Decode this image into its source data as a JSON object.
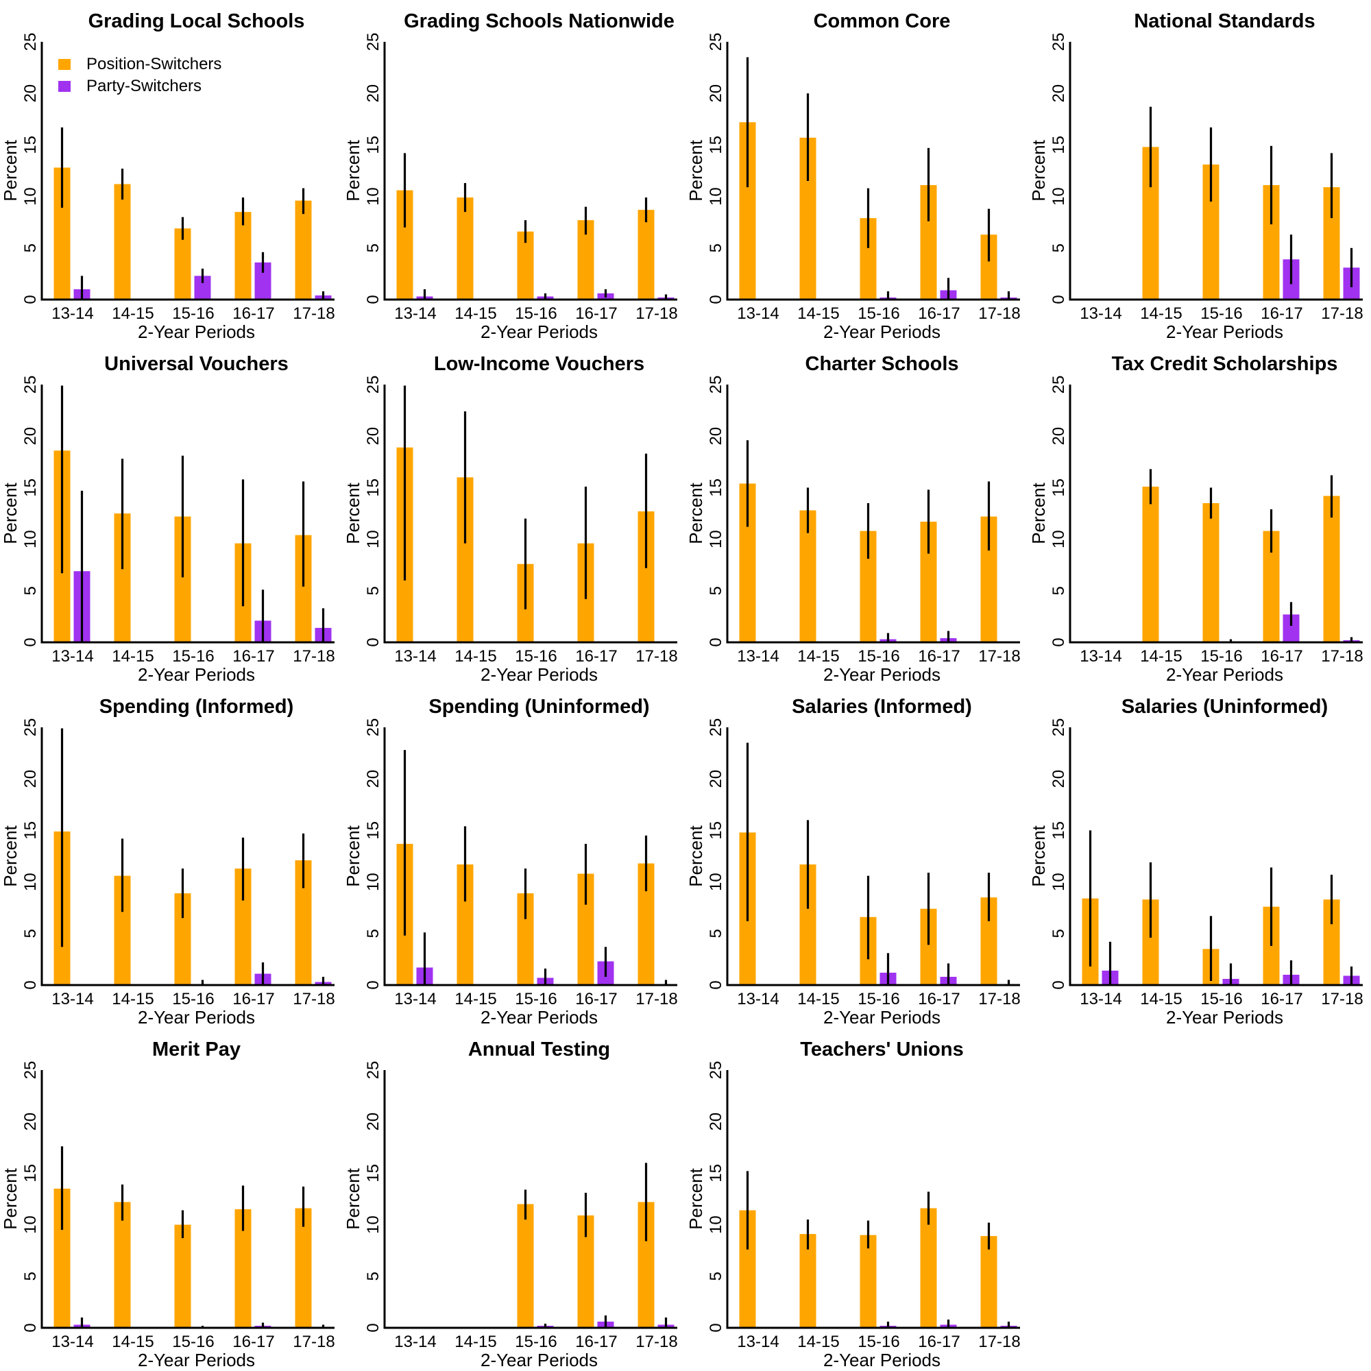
{
  "chart_data": {
    "type": "bar",
    "layout": "small-multiples 4x4 grid",
    "xlabel": "2-Year Periods",
    "ylabel": "Percent",
    "ylim": [
      0,
      25
    ],
    "yticks": [
      0,
      5,
      10,
      15,
      20,
      25
    ],
    "categories": [
      "13-14",
      "14-15",
      "15-16",
      "16-17",
      "17-18"
    ],
    "grid": false,
    "legend": {
      "placement": "top-left (first panel)",
      "entries": [
        {
          "name": "Position-Switchers",
          "color": "#FFA500"
        },
        {
          "name": "Party-Switchers",
          "color": "#A032F0"
        }
      ]
    },
    "error_bar_color": "#000000",
    "panels": [
      {
        "title": "Grading Local Schools",
        "series": [
          {
            "name": "Position-Switchers",
            "values": [
              12.8,
              11.2,
              6.9,
              8.5,
              9.6
            ],
            "ci_low": [
              8.9,
              9.7,
              5.8,
              7.2,
              8.3
            ],
            "ci_high": [
              16.7,
              12.7,
              8.0,
              9.9,
              10.8
            ]
          },
          {
            "name": "Party-Switchers",
            "values": [
              1.0,
              null,
              2.3,
              3.6,
              0.4
            ],
            "ci_low": [
              0.0,
              null,
              1.6,
              2.6,
              0.0
            ],
            "ci_high": [
              2.3,
              null,
              3.0,
              4.6,
              0.8
            ]
          }
        ]
      },
      {
        "title": "Grading Schools Nationwide",
        "series": [
          {
            "name": "Position-Switchers",
            "values": [
              10.6,
              9.9,
              6.6,
              7.7,
              8.7
            ],
            "ci_low": [
              7.0,
              8.5,
              5.5,
              6.3,
              7.5
            ],
            "ci_high": [
              14.2,
              11.3,
              7.7,
              9.0,
              9.9
            ]
          },
          {
            "name": "Party-Switchers",
            "values": [
              0.3,
              null,
              0.3,
              0.6,
              0.2
            ],
            "ci_low": [
              0.0,
              null,
              0.0,
              0.2,
              0.0
            ],
            "ci_high": [
              1.0,
              null,
              0.6,
              1.0,
              0.5
            ]
          }
        ]
      },
      {
        "title": "Common Core",
        "series": [
          {
            "name": "Position-Switchers",
            "values": [
              17.2,
              15.7,
              7.9,
              11.1,
              6.3
            ],
            "ci_low": [
              10.9,
              11.5,
              5.0,
              7.6,
              3.7
            ],
            "ci_high": [
              23.5,
              20.0,
              10.8,
              14.7,
              8.8
            ]
          },
          {
            "name": "Party-Switchers",
            "values": [
              null,
              null,
              0.2,
              0.9,
              0.2
            ],
            "ci_low": [
              null,
              null,
              0.0,
              0.0,
              0.0
            ],
            "ci_high": [
              null,
              null,
              0.8,
              2.1,
              0.8
            ]
          }
        ]
      },
      {
        "title": "National Standards",
        "series": [
          {
            "name": "Position-Switchers",
            "values": [
              null,
              14.8,
              13.1,
              11.1,
              10.9
            ],
            "ci_low": [
              null,
              10.9,
              9.5,
              7.3,
              7.9
            ],
            "ci_high": [
              null,
              18.7,
              16.7,
              14.9,
              14.2
            ]
          },
          {
            "name": "Party-Switchers",
            "values": [
              null,
              null,
              null,
              3.9,
              3.1
            ],
            "ci_low": [
              null,
              null,
              null,
              1.5,
              1.2
            ],
            "ci_high": [
              null,
              null,
              null,
              6.3,
              5.0
            ]
          }
        ]
      },
      {
        "title": "Universal Vouchers",
        "series": [
          {
            "name": "Position-Switchers",
            "values": [
              18.6,
              12.5,
              12.2,
              9.6,
              10.4
            ],
            "ci_low": [
              6.7,
              7.1,
              6.3,
              3.5,
              5.4
            ],
            "ci_high": [
              24.9,
              17.8,
              18.1,
              15.8,
              15.6
            ]
          },
          {
            "name": "Party-Switchers",
            "values": [
              6.9,
              null,
              null,
              2.1,
              1.4
            ],
            "ci_low": [
              0.0,
              null,
              null,
              0.0,
              0.0
            ],
            "ci_high": [
              14.7,
              null,
              null,
              5.1,
              3.3
            ]
          }
        ]
      },
      {
        "title": "Low-Income Vouchers",
        "series": [
          {
            "name": "Position-Switchers",
            "values": [
              18.9,
              16.0,
              7.6,
              9.6,
              12.7
            ],
            "ci_low": [
              6.0,
              9.6,
              3.2,
              4.2,
              7.2
            ],
            "ci_high": [
              24.9,
              22.4,
              12.0,
              15.1,
              18.3
            ]
          },
          {
            "name": "Party-Switchers",
            "values": [
              null,
              null,
              null,
              null,
              null
            ],
            "ci_low": [
              null,
              null,
              null,
              null,
              null
            ],
            "ci_high": [
              null,
              null,
              null,
              null,
              null
            ]
          }
        ]
      },
      {
        "title": "Charter Schools",
        "series": [
          {
            "name": "Position-Switchers",
            "values": [
              15.4,
              12.8,
              10.8,
              11.7,
              12.2
            ],
            "ci_low": [
              11.2,
              10.6,
              8.1,
              8.6,
              8.9
            ],
            "ci_high": [
              19.6,
              15.0,
              13.5,
              14.8,
              15.6
            ]
          },
          {
            "name": "Party-Switchers",
            "values": [
              null,
              null,
              0.3,
              0.4,
              null
            ],
            "ci_low": [
              null,
              null,
              0.0,
              0.0,
              null
            ],
            "ci_high": [
              null,
              null,
              0.9,
              1.1,
              null
            ]
          }
        ]
      },
      {
        "title": "Tax Credit Scholarships",
        "series": [
          {
            "name": "Position-Switchers",
            "values": [
              null,
              15.1,
              13.5,
              10.8,
              14.2
            ],
            "ci_low": [
              null,
              13.4,
              12.0,
              8.7,
              12.1
            ],
            "ci_high": [
              null,
              16.8,
              15.0,
              12.9,
              16.2
            ]
          },
          {
            "name": "Party-Switchers",
            "values": [
              null,
              null,
              0.1,
              2.7,
              0.2
            ],
            "ci_low": [
              null,
              null,
              0.0,
              1.6,
              0.0
            ],
            "ci_high": [
              null,
              null,
              0.3,
              3.9,
              0.5
            ]
          }
        ]
      },
      {
        "title": "Spending (Informed)",
        "series": [
          {
            "name": "Position-Switchers",
            "values": [
              14.9,
              10.6,
              8.9,
              11.3,
              12.1
            ],
            "ci_low": [
              3.7,
              7.1,
              6.5,
              8.2,
              9.4
            ],
            "ci_high": [
              24.9,
              14.2,
              11.3,
              14.3,
              14.7
            ]
          },
          {
            "name": "Party-Switchers",
            "values": [
              null,
              null,
              0.1,
              1.1,
              0.3
            ],
            "ci_low": [
              null,
              null,
              0.0,
              0.0,
              0.0
            ],
            "ci_high": [
              null,
              null,
              0.5,
              2.2,
              0.8
            ]
          }
        ]
      },
      {
        "title": "Spending (Uninformed)",
        "series": [
          {
            "name": "Position-Switchers",
            "values": [
              13.7,
              11.7,
              8.9,
              10.8,
              11.8
            ],
            "ci_low": [
              4.8,
              8.1,
              6.4,
              7.8,
              9.1
            ],
            "ci_high": [
              22.8,
              15.4,
              11.3,
              13.7,
              14.5
            ]
          },
          {
            "name": "Party-Switchers",
            "values": [
              1.7,
              null,
              0.7,
              2.3,
              0.1
            ],
            "ci_low": [
              0.0,
              null,
              0.0,
              0.8,
              0.0
            ],
            "ci_high": [
              5.1,
              null,
              1.6,
              3.7,
              0.5
            ]
          }
        ]
      },
      {
        "title": "Salaries (Informed)",
        "series": [
          {
            "name": "Position-Switchers",
            "values": [
              14.8,
              11.7,
              6.6,
              7.4,
              8.5
            ],
            "ci_low": [
              6.2,
              7.4,
              2.5,
              3.9,
              6.2
            ],
            "ci_high": [
              23.5,
              16.0,
              10.6,
              10.9,
              10.9
            ]
          },
          {
            "name": "Party-Switchers",
            "values": [
              null,
              null,
              1.2,
              0.8,
              0.1
            ],
            "ci_low": [
              null,
              null,
              0.0,
              0.0,
              0.0
            ],
            "ci_high": [
              null,
              null,
              3.1,
              2.1,
              0.5
            ]
          }
        ]
      },
      {
        "title": "Salaries (Uninformed)",
        "series": [
          {
            "name": "Position-Switchers",
            "values": [
              8.4,
              8.3,
              3.5,
              7.6,
              8.3
            ],
            "ci_low": [
              1.8,
              4.6,
              0.4,
              3.8,
              5.9
            ],
            "ci_high": [
              15.0,
              11.9,
              6.7,
              11.4,
              10.7
            ]
          },
          {
            "name": "Party-Switchers",
            "values": [
              1.4,
              null,
              0.6,
              1.0,
              0.9
            ],
            "ci_low": [
              0.0,
              null,
              0.0,
              0.0,
              0.0
            ],
            "ci_high": [
              4.2,
              null,
              2.1,
              2.4,
              1.8
            ]
          }
        ]
      },
      {
        "title": "Merit Pay",
        "series": [
          {
            "name": "Position-Switchers",
            "values": [
              13.5,
              12.2,
              10.0,
              11.5,
              11.6
            ],
            "ci_low": [
              9.5,
              10.4,
              8.7,
              9.4,
              9.8
            ],
            "ci_high": [
              17.6,
              13.9,
              11.4,
              13.8,
              13.7
            ]
          },
          {
            "name": "Party-Switchers",
            "values": [
              0.3,
              null,
              0.0,
              0.2,
              0.0
            ],
            "ci_low": [
              0.0,
              null,
              0.0,
              0.0,
              0.0
            ],
            "ci_high": [
              1.0,
              null,
              0.2,
              0.5,
              0.3
            ]
          }
        ]
      },
      {
        "title": "Annual Testing",
        "series": [
          {
            "name": "Position-Switchers",
            "values": [
              null,
              null,
              12.0,
              10.9,
              12.2
            ],
            "ci_low": [
              null,
              null,
              10.5,
              8.8,
              8.4
            ],
            "ci_high": [
              null,
              null,
              13.4,
              13.1,
              16.0
            ]
          },
          {
            "name": "Party-Switchers",
            "values": [
              null,
              null,
              0.2,
              0.6,
              0.3
            ],
            "ci_low": [
              null,
              null,
              0.0,
              0.0,
              0.0
            ],
            "ci_high": [
              null,
              null,
              0.4,
              1.2,
              1.0
            ]
          }
        ]
      },
      {
        "title": "Teachers' Unions",
        "series": [
          {
            "name": "Position-Switchers",
            "values": [
              11.4,
              9.1,
              9.0,
              11.6,
              8.9
            ],
            "ci_low": [
              7.6,
              7.6,
              7.7,
              10.0,
              7.6
            ],
            "ci_high": [
              15.2,
              10.5,
              10.4,
              13.2,
              10.2
            ]
          },
          {
            "name": "Party-Switchers",
            "values": [
              null,
              null,
              0.2,
              0.3,
              0.2
            ],
            "ci_low": [
              null,
              null,
              0.0,
              0.0,
              0.0
            ],
            "ci_high": [
              null,
              null,
              0.6,
              0.8,
              0.6
            ]
          }
        ]
      }
    ]
  }
}
